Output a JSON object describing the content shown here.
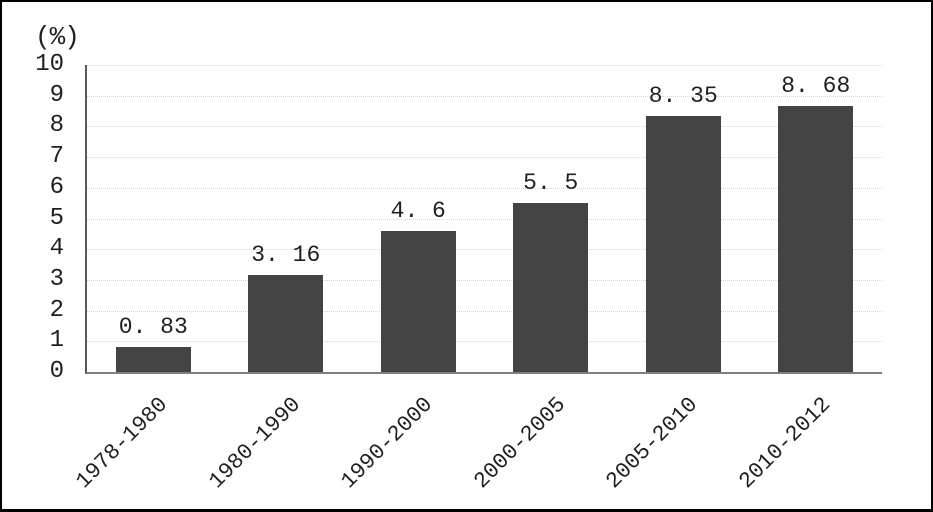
{
  "chart_data": {
    "type": "bar",
    "title": "",
    "unit_label": "(%)",
    "xlabel": "",
    "ylabel": "(%)",
    "categories": [
      "1978-1980",
      "1980-1990",
      "1990-2000",
      "2000-2005",
      "2005-2010",
      "2010-2012"
    ],
    "values": [
      0.83,
      3.16,
      4.6,
      5.5,
      8.35,
      8.68
    ],
    "value_labels": [
      "0. 83",
      "3. 16",
      "4. 6",
      "5. 5",
      "8. 35",
      "8. 68"
    ],
    "ylim": [
      0,
      10
    ],
    "ytick_step": 1,
    "ytick_labels": [
      "0",
      "1",
      "2",
      "3",
      "4",
      "5",
      "6",
      "7",
      "8",
      "9",
      "10"
    ],
    "grid": "horizontal dotted lines at every integer",
    "legend_position": "none",
    "x_label_rotation_deg": -45,
    "colors": {
      "bar": "#444444",
      "axis": "#595959",
      "baseline": "#7f7f7f",
      "gridline": "#d4d4d4",
      "text": "#1f1f1f",
      "frame_border": "#000000",
      "background": "#ffffff"
    }
  }
}
